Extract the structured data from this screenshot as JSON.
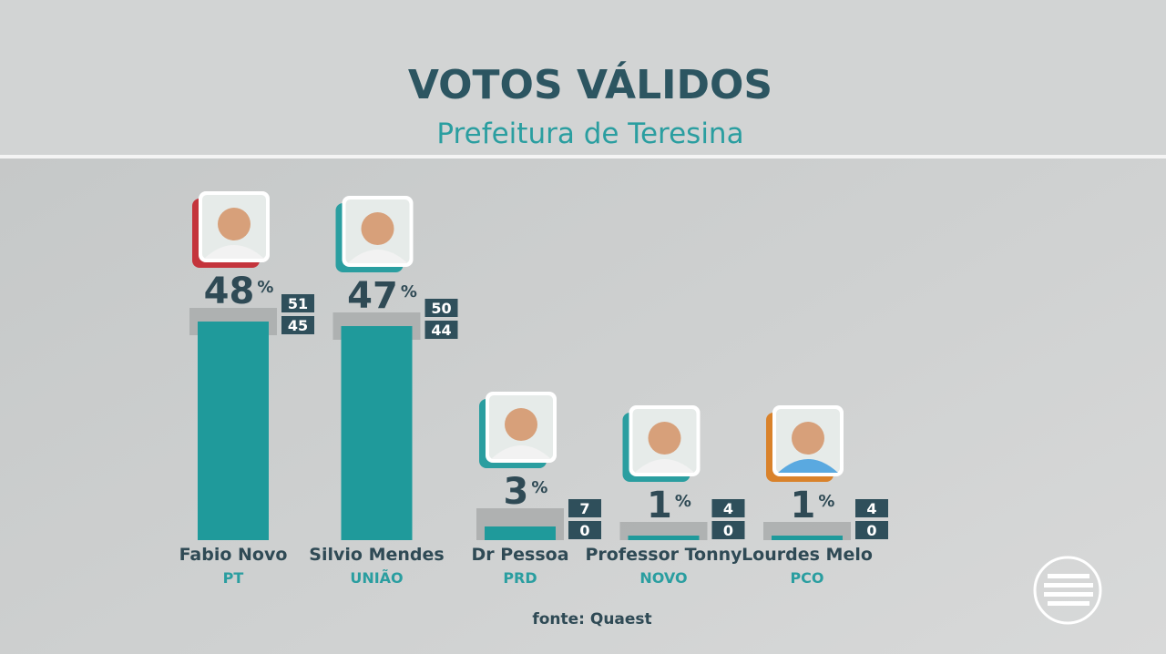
{
  "chart_data": {
    "type": "bar",
    "title": "VOTOS VÁLIDOS",
    "subtitle": "Prefeitura de Teresina",
    "categories": [
      "Fabio Novo",
      "Silvio Mendes",
      "Dr Pessoa",
      "Professor Tonny",
      "Lourdes Melo"
    ],
    "parties": [
      "PT",
      "UNIÃO",
      "PRD",
      "NOVO",
      "PCO"
    ],
    "party_colors": [
      "#c4343c",
      "#2a9ea0",
      "#2a9ea0",
      "#2a9ea0",
      "#d9822b"
    ],
    "values": [
      48,
      47,
      3,
      1,
      1
    ],
    "upper": [
      51,
      50,
      7,
      4,
      4
    ],
    "lower": [
      45,
      44,
      0,
      0,
      0
    ],
    "unit": "%",
    "color": "#1f9a9b",
    "source": "fonte: Quaest"
  }
}
